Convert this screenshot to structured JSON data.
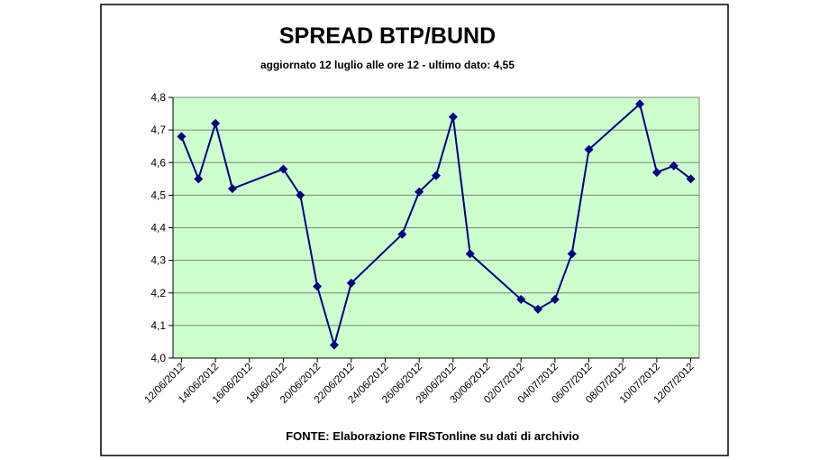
{
  "chart_data": {
    "type": "line",
    "title": "SPREAD BTP/BUND",
    "subtitle": "aggiornato 12 luglio alle ore 12 - ultimo dato: 4,55",
    "source": "FONTE: Elaborazione FIRSTonline su dati di archivio",
    "x": [
      "12/06/2012",
      "13/06/2012",
      "14/06/2012",
      "15/06/2012",
      "18/06/2012",
      "19/06/2012",
      "20/06/2012",
      "21/06/2012",
      "22/06/2012",
      "25/06/2012",
      "26/06/2012",
      "27/06/2012",
      "28/06/2012",
      "29/06/2012",
      "02/07/2012",
      "03/07/2012",
      "04/07/2012",
      "05/07/2012",
      "06/07/2012",
      "09/07/2012",
      "10/07/2012",
      "11/07/2012",
      "12/07/2012"
    ],
    "series": [
      {
        "color": "#000080",
        "values": [
          4.68,
          4.55,
          4.72,
          4.52,
          4.58,
          4.5,
          4.22,
          4.04,
          4.23,
          4.38,
          4.51,
          4.56,
          4.74,
          4.32,
          4.18,
          4.15,
          4.18,
          4.32,
          4.64,
          4.78,
          4.57,
          4.59,
          4.55
        ]
      }
    ],
    "xlim": [
      "12/06/2012",
      "12/07/2012"
    ],
    "xticks": [
      "12/06/2012",
      "14/06/2012",
      "16/06/2012",
      "18/06/2012",
      "20/06/2012",
      "22/06/2012",
      "24/06/2012",
      "26/06/2012",
      "28/06/2012",
      "30/06/2012",
      "02/07/2012",
      "04/07/2012",
      "06/07/2012",
      "08/07/2012",
      "10/07/2012",
      "12/07/2012"
    ],
    "ylim": [
      4.0,
      4.8
    ],
    "yticks": [
      {
        "value": 4.0,
        "label": "4,0"
      },
      {
        "value": 4.1,
        "label": "4,1"
      },
      {
        "value": 4.2,
        "label": "4,2"
      },
      {
        "value": 4.3,
        "label": "4,3"
      },
      {
        "value": 4.4,
        "label": "4,4"
      },
      {
        "value": 4.5,
        "label": "4,5"
      },
      {
        "value": 4.6,
        "label": "4,6"
      },
      {
        "value": 4.7,
        "label": "4,7"
      },
      {
        "value": 4.8,
        "label": "4,8"
      }
    ],
    "grid": true,
    "plot_background": "#ccffcc"
  }
}
